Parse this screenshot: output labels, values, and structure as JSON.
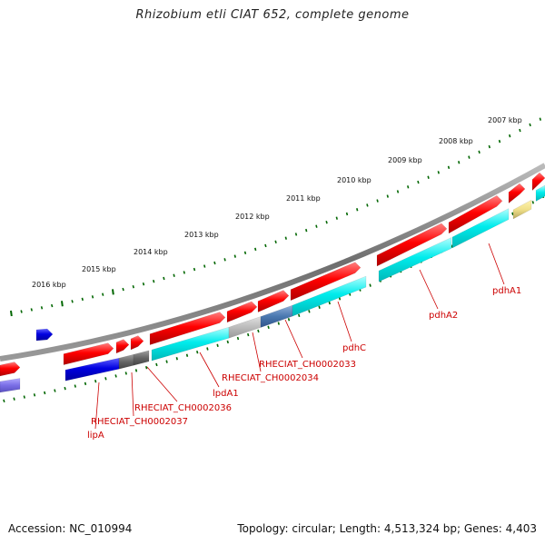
{
  "title": "Rhizobium etli CIAT 652, complete genome",
  "footer": {
    "accession": "Accession: NC_010994",
    "summary": "Topology: circular; Length: 4,513,324 bp; Genes: 4,403"
  },
  "ruler": [
    "2007 kbp",
    "2008 kbp",
    "2009 kbp",
    "2010 kbp",
    "2011 kbp",
    "2012 kbp",
    "2013 kbp",
    "2014 kbp",
    "2015 kbp",
    "2016 kbp"
  ],
  "gene_labels": [
    "pdhA1",
    "pdhA2",
    "pdhC",
    "RHECIAT_CH0002033",
    "RHECIAT_CH0002034",
    "lpdA1",
    "RHECIAT_CH0002036",
    "RHECIAT_CH0002037",
    "lipA"
  ],
  "colors": {
    "forward": "#ff0000",
    "reverse_cyan": "#00e5e5",
    "reverse_blue": "#0000dd",
    "backbone": "#777777",
    "ticks": "#006600",
    "labels": "#cc0000"
  }
}
